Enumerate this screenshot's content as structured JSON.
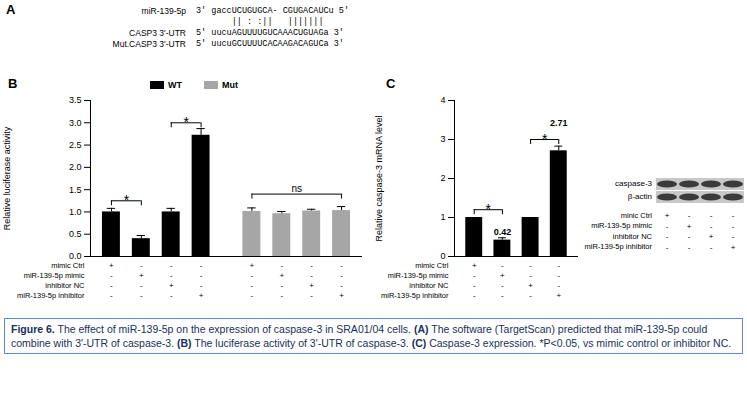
{
  "panel_a": {
    "panel_label": "A",
    "rows": [
      {
        "name": "miR-139-5p",
        "sequence": "3' gaccUCUGUGCA- CGUGACAUCu 5'"
      },
      {
        "name": "CASP3 3'-UTR",
        "sequence": "5' uucuAGUUUUGUCAAACUGUAGa 3'"
      },
      {
        "name": "Mut.CASP3 3'-UTR",
        "sequence": "5' uucuGCUUUUCACAAGACAGUCa 3'"
      }
    ],
    "pairing": "       || : :||   |||||||"
  },
  "chart_data": [
    {
      "panel_label": "B",
      "type": "bar",
      "categories": [
        "mimic Ctrl",
        "miR-139-5p mimic",
        "inhibitor NC",
        "miR-139-5p inhibitor"
      ],
      "series": [
        {
          "name": "WT",
          "color": "#000000",
          "values": [
            1.0,
            0.4,
            1.0,
            2.72
          ],
          "errors": [
            0.08,
            0.07,
            0.08,
            0.15
          ]
        },
        {
          "name": "Mut",
          "color": "#a6a6a6",
          "values": [
            1.01,
            0.96,
            1.02,
            1.03
          ],
          "errors": [
            0.08,
            0.05,
            0.04,
            0.09
          ]
        }
      ],
      "ylabel": "Relative luciferase activity",
      "ylim": [
        0,
        3.5
      ],
      "yticks": [
        {
          "value": 0,
          "label": "0.0"
        },
        0.5,
        {
          "value": 1,
          "label": "1.0"
        },
        1.5,
        {
          "value": 2,
          "label": "2.0"
        },
        2.5,
        {
          "value": 3,
          "label": "3.0"
        },
        3.5
      ],
      "legend": "top",
      "tick_labels": "y",
      "annotations": [
        {
          "series": "WT",
          "from": "mimic Ctrl",
          "to": "miR-139-5p mimic",
          "y": 1.25,
          "text": "*"
        },
        {
          "series": "WT",
          "from": "inhibitor NC",
          "to": "miR-139-5p inhibitor",
          "y": 3.0,
          "text": "*"
        },
        {
          "series": "Mut",
          "from": "mimic Ctrl",
          "to": "miR-139-5p inhibitor",
          "y": 1.4,
          "text": "ns"
        }
      ],
      "condition_signs": [
        [
          "+",
          "-",
          "-",
          "-"
        ],
        [
          "-",
          "+",
          "-",
          "-"
        ],
        [
          "-",
          "-",
          "+",
          "-"
        ],
        [
          "-",
          "-",
          "-",
          "+"
        ]
      ]
    },
    {
      "panel_label": "C",
      "type": "bar",
      "categories": [
        "mimic Ctrl",
        "miR-139-5p mimic",
        "inhibitor NC",
        "miR-139-5p inhibitor"
      ],
      "values": [
        1,
        0.42,
        1,
        2.71
      ],
      "errors": [
        0,
        0.06,
        0,
        0.12
      ],
      "value_labels": [
        null,
        "0.42",
        null,
        "2.71"
      ],
      "color": "#000000",
      "ylabel": "Relative caspase-3 mRNA level",
      "ylim": [
        0,
        4
      ],
      "yticks": [
        0,
        1,
        2,
        3,
        4
      ],
      "tick_labels": "y",
      "annotations": [
        {
          "from": "mimic Ctrl",
          "to": "miR-139-5p mimic",
          "y": 1.2,
          "text": "*"
        },
        {
          "from": "inhibitor NC",
          "to": "miR-139-5p inhibitor",
          "y": 3.0,
          "text": "*"
        }
      ],
      "condition_signs": [
        [
          "+",
          "-",
          "-",
          "-"
        ],
        [
          "-",
          "+",
          "-",
          "-"
        ],
        [
          "-",
          "-",
          "+",
          "-"
        ],
        [
          "-",
          "-",
          "-",
          "+"
        ]
      ]
    }
  ],
  "blot": {
    "bands": [
      "caspase-3",
      "β-actin"
    ],
    "rows": [
      "minic Ctrl",
      "miR-139-5p mimic",
      "inhibitor NC",
      "miR-139-5p inhibitor"
    ],
    "signs": [
      [
        "+",
        "-",
        "-",
        "-"
      ],
      [
        "-",
        "+",
        "-",
        "-"
      ],
      [
        "-",
        "-",
        "+",
        "-"
      ],
      [
        "-",
        "-",
        "-",
        "+"
      ]
    ]
  },
  "caption": [
    {
      "text": "Figure 6.",
      "bold": true
    },
    {
      "text": " The effect of miR-139-5p on the expression of caspase-3 in SRA01/04 cells. "
    },
    {
      "text": "(A)",
      "bold": true
    },
    {
      "text": " The software (TargetScan) predicted that miR-139-5p could combine with 3'-UTR of caspase-3. "
    },
    {
      "text": "(B)",
      "bold": true
    },
    {
      "text": " The luciferase activity of 3'-UTR of caspase-3. "
    },
    {
      "text": "(C)",
      "bold": true
    },
    {
      "text": " Caspase-3 expression. *P<0.05, vs mimic control or inhibitor NC."
    }
  ]
}
